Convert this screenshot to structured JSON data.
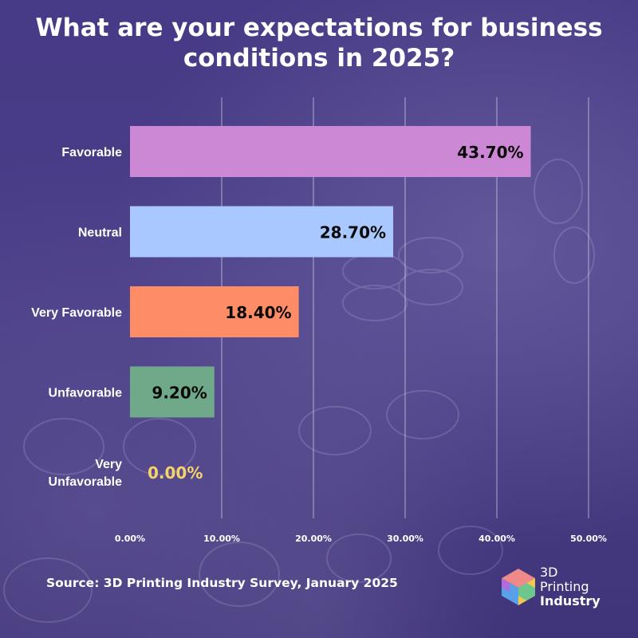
{
  "chart_data": {
    "type": "bar",
    "orientation": "horizontal",
    "title": "What are your expectations for business conditions in 2025?",
    "categories": [
      "Favorable",
      "Neutral",
      "Very Favorable",
      "Unfavorable",
      "Very Unfavorable"
    ],
    "values": [
      43.7,
      28.7,
      18.4,
      9.2,
      0.0
    ],
    "data_labels": [
      "43.70%",
      "28.70%",
      "18.40%",
      "9.20%",
      "0.00%"
    ],
    "colors": [
      "#cc88d4",
      "#a8c8ff",
      "#fe8c66",
      "#6fa989",
      "#f6d36a"
    ],
    "xlim": [
      0,
      50
    ],
    "xticks": [
      0,
      10,
      20,
      30,
      40,
      50
    ],
    "xtick_labels": [
      "0.00%",
      "10.00%",
      "20.00%",
      "30.00%",
      "40.00%",
      "50.00%"
    ],
    "grid": true,
    "legend": "none"
  },
  "footer": {
    "source": "Source: 3D Printing Industry Survey, January 2025"
  },
  "logo": {
    "line1": "3D",
    "line2": "Printing",
    "line3": "Industry",
    "icon": "cube-logo-icon"
  }
}
